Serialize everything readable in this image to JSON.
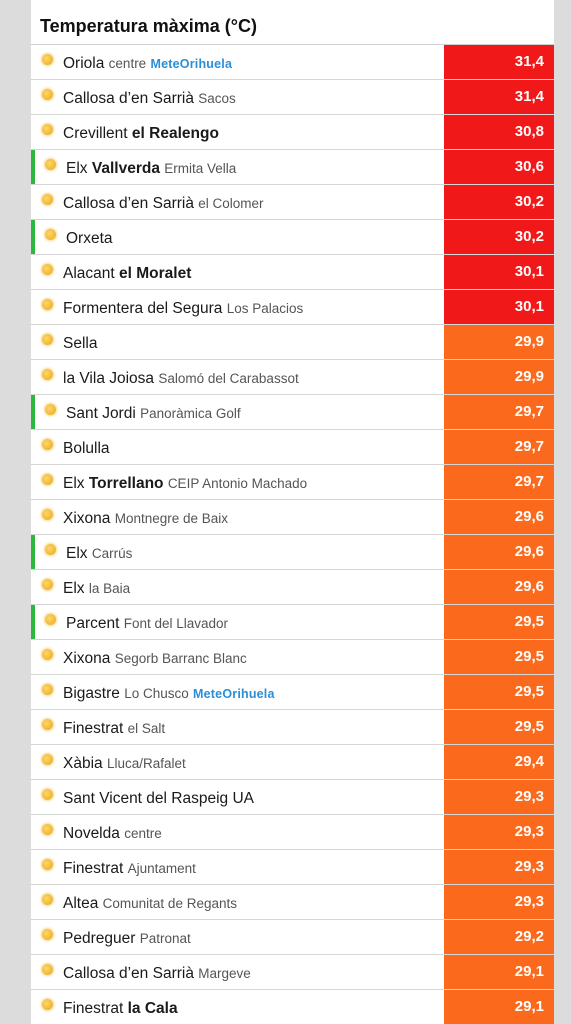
{
  "title": "Temperatura màxima (°C)",
  "colors": {
    "red": "#f01818",
    "orange": "#fb6a1c",
    "green_marker": "#2db83d"
  },
  "logo": {
    "prefix": "MeteO",
    "suffix": "rihuela"
  },
  "rows": [
    {
      "place": "Oriola",
      "detail": "centre",
      "detail_bold": false,
      "logo": true,
      "value": "31,4",
      "tone": "red",
      "green": false
    },
    {
      "place": "Callosa d’en Sarrià",
      "detail": "Sacos",
      "detail_bold": false,
      "logo": false,
      "value": "31,4",
      "tone": "red",
      "green": false
    },
    {
      "place": "Crevillent",
      "detail": "el Realengo",
      "detail_bold": true,
      "logo": false,
      "value": "30,8",
      "tone": "red",
      "green": false
    },
    {
      "place": "Elx",
      "detail": "Vallverda",
      "detail_bold": true,
      "extra": "Ermita Vella",
      "logo": false,
      "value": "30,6",
      "tone": "red",
      "green": true
    },
    {
      "place": "Callosa d’en Sarrià",
      "detail": "el Colomer",
      "detail_bold": false,
      "logo": false,
      "value": "30,2",
      "tone": "red",
      "green": false
    },
    {
      "place": "Orxeta",
      "detail": "",
      "detail_bold": false,
      "logo": false,
      "value": "30,2",
      "tone": "red",
      "green": true
    },
    {
      "place": "Alacant",
      "detail": "el Moralet",
      "detail_bold": true,
      "logo": false,
      "value": "30,1",
      "tone": "red",
      "green": false
    },
    {
      "place": "Formentera del Segura",
      "detail": "Los Palacios",
      "detail_bold": false,
      "logo": false,
      "value": "30,1",
      "tone": "red",
      "green": false
    },
    {
      "place": "Sella",
      "detail": "",
      "detail_bold": false,
      "logo": false,
      "value": "29,9",
      "tone": "orange",
      "green": false
    },
    {
      "place": "la Vila Joiosa",
      "detail": "Salomó del Carabassot",
      "detail_bold": false,
      "logo": false,
      "value": "29,9",
      "tone": "orange",
      "green": false
    },
    {
      "place": "Sant Jordi",
      "detail": "Panoràmica Golf",
      "detail_bold": false,
      "logo": false,
      "value": "29,7",
      "tone": "orange",
      "green": true
    },
    {
      "place": "Bolulla",
      "detail": "",
      "detail_bold": false,
      "logo": false,
      "value": "29,7",
      "tone": "orange",
      "green": false
    },
    {
      "place": "Elx",
      "detail": "Torrellano",
      "detail_bold": true,
      "extra": "CEIP Antonio Machado",
      "logo": false,
      "value": "29,7",
      "tone": "orange",
      "green": false
    },
    {
      "place": "Xixona",
      "detail": "Montnegre de Baix",
      "detail_bold": false,
      "logo": false,
      "value": "29,6",
      "tone": "orange",
      "green": false
    },
    {
      "place": "Elx",
      "detail": "Carrús",
      "detail_bold": false,
      "logo": false,
      "value": "29,6",
      "tone": "orange",
      "green": true
    },
    {
      "place": "Elx",
      "detail": "la Baia",
      "detail_bold": false,
      "logo": false,
      "value": "29,6",
      "tone": "orange",
      "green": false
    },
    {
      "place": "Parcent",
      "detail": "Font del Llavador",
      "detail_bold": false,
      "logo": false,
      "value": "29,5",
      "tone": "orange",
      "green": true
    },
    {
      "place": "Xixona",
      "detail": "Segorb Barranc Blanc",
      "detail_bold": false,
      "logo": false,
      "value": "29,5",
      "tone": "orange",
      "green": false
    },
    {
      "place": "Bigastre",
      "detail": "Lo Chusco",
      "detail_bold": false,
      "logo": true,
      "value": "29,5",
      "tone": "orange",
      "green": false
    },
    {
      "place": "Finestrat",
      "detail": "el Salt",
      "detail_bold": false,
      "logo": false,
      "value": "29,5",
      "tone": "orange",
      "green": false
    },
    {
      "place": "Xàbia",
      "detail": "Lluca/Rafalet",
      "detail_bold": false,
      "logo": false,
      "value": "29,4",
      "tone": "orange",
      "green": false
    },
    {
      "place": "Sant Vicent del Raspeig UA",
      "detail": "",
      "detail_bold": false,
      "logo": false,
      "value": "29,3",
      "tone": "orange",
      "green": false
    },
    {
      "place": "Novelda",
      "detail": "centre",
      "detail_bold": false,
      "logo": false,
      "value": "29,3",
      "tone": "orange",
      "green": false
    },
    {
      "place": "Finestrat",
      "detail": "Ajuntament",
      "detail_bold": false,
      "logo": false,
      "value": "29,3",
      "tone": "orange",
      "green": false
    },
    {
      "place": "Altea",
      "detail": "Comunitat de Regants",
      "detail_bold": false,
      "logo": false,
      "value": "29,3",
      "tone": "orange",
      "green": false
    },
    {
      "place": "Pedreguer",
      "detail": "Patronat",
      "detail_bold": false,
      "logo": false,
      "value": "29,2",
      "tone": "orange",
      "green": false
    },
    {
      "place": "Callosa d’en Sarrià",
      "detail": "Margeve",
      "detail_bold": false,
      "logo": false,
      "value": "29,1",
      "tone": "orange",
      "green": false
    },
    {
      "place": "Finestrat",
      "detail": "la Cala",
      "detail_bold": true,
      "logo": false,
      "value": "29,1",
      "tone": "orange",
      "green": false
    }
  ]
}
